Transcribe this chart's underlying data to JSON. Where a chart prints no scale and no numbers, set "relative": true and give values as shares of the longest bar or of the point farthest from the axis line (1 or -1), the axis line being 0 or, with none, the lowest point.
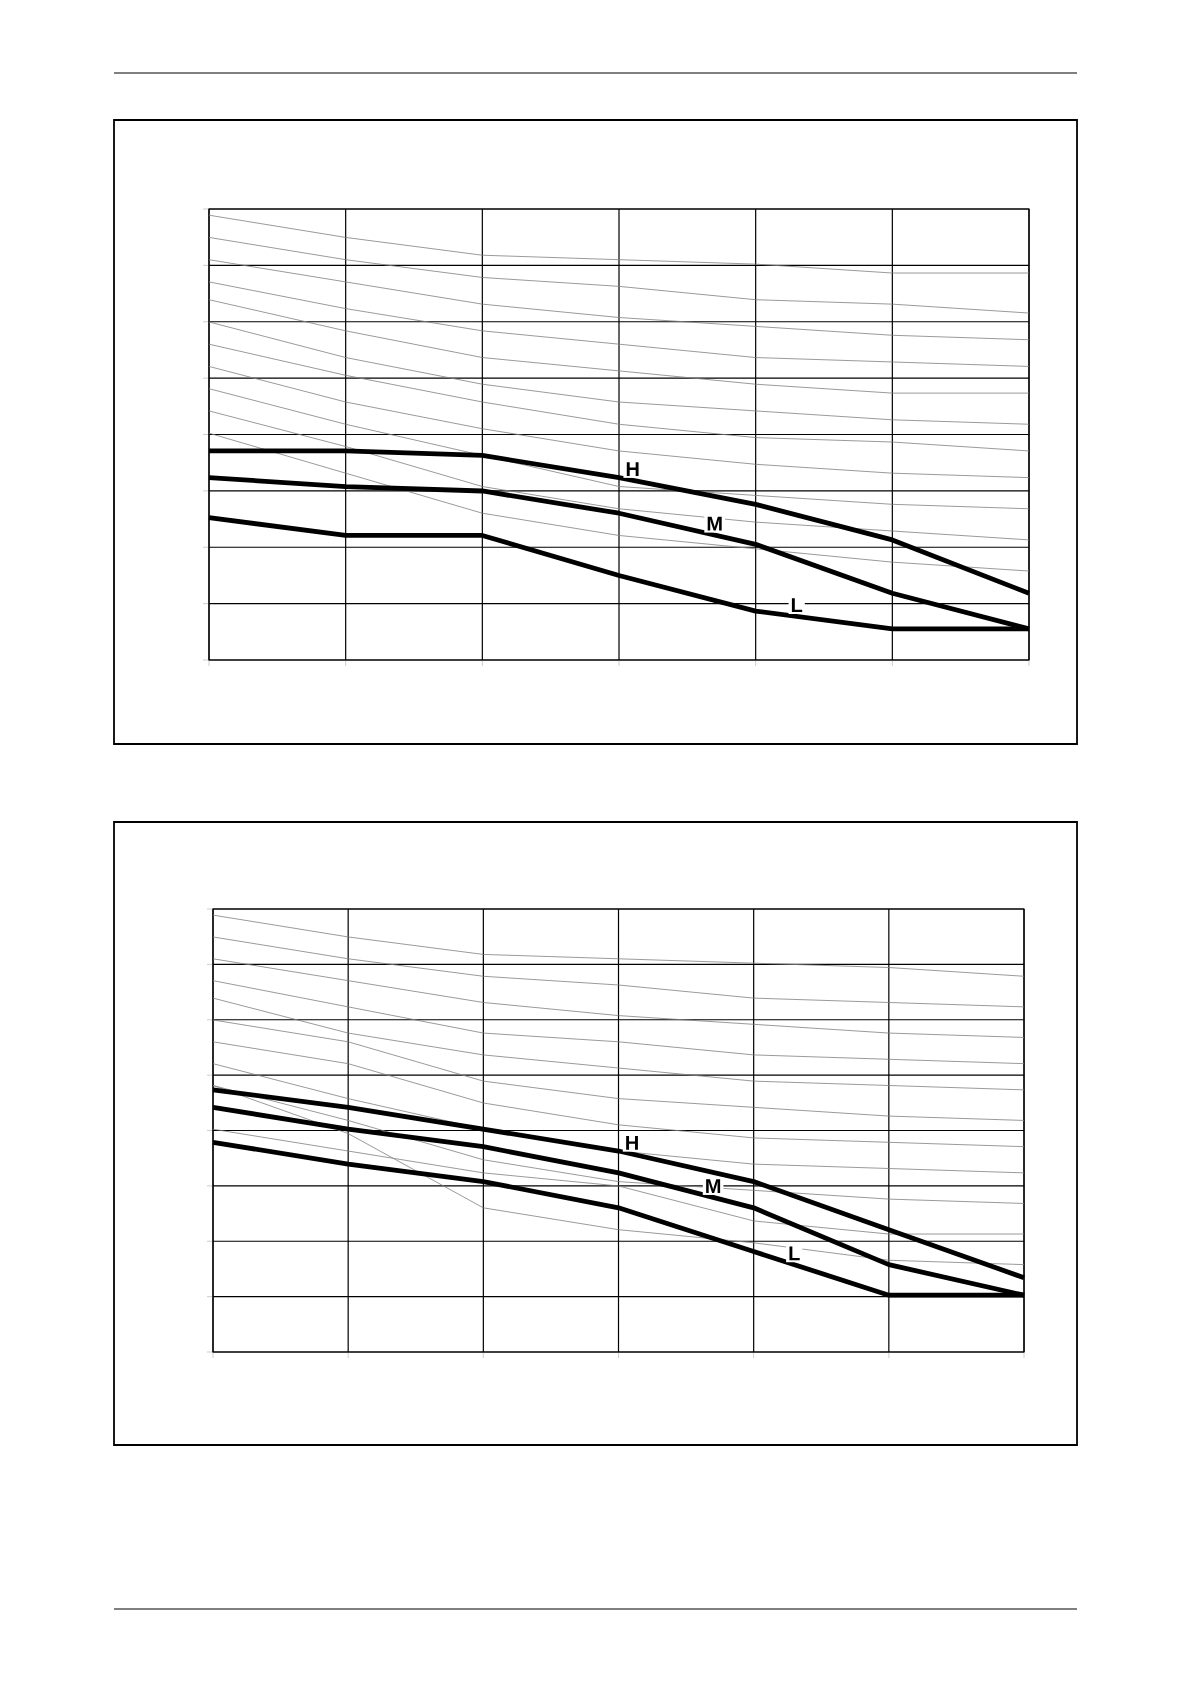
{
  "chart_data": [
    {
      "type": "line",
      "relative": true,
      "grid": true,
      "categories": [
        null,
        null,
        null,
        null,
        null,
        null,
        null
      ],
      "series": [
        {
          "color": "#808080",
          "values": [
            1.0,
            0.95,
            0.91,
            0.9,
            0.89,
            0.87,
            0.87
          ]
        },
        {
          "color": "#808080",
          "values": [
            0.95,
            0.9,
            0.86,
            0.84,
            0.81,
            0.8,
            0.78
          ]
        },
        {
          "color": "#808080",
          "values": [
            0.9,
            0.85,
            0.8,
            0.77,
            0.75,
            0.73,
            0.72
          ]
        },
        {
          "color": "#808080",
          "values": [
            0.85,
            0.79,
            0.74,
            0.71,
            0.68,
            0.67,
            0.66
          ]
        },
        {
          "color": "#808080",
          "values": [
            0.81,
            0.74,
            0.68,
            0.65,
            0.62,
            0.6,
            0.6
          ]
        },
        {
          "color": "#808080",
          "values": [
            0.76,
            0.68,
            0.62,
            0.58,
            0.56,
            0.54,
            0.53
          ]
        },
        {
          "color": "#808080",
          "values": [
            0.71,
            0.64,
            0.58,
            0.53,
            0.5,
            0.49,
            0.47
          ]
        },
        {
          "color": "#808080",
          "values": [
            0.66,
            0.58,
            0.52,
            0.47,
            0.44,
            0.42,
            0.41
          ]
        },
        {
          "color": "#808080",
          "values": [
            0.61,
            0.53,
            0.46,
            0.39,
            0.37,
            0.35,
            0.34
          ]
        },
        {
          "color": "#808080",
          "values": [
            0.56,
            0.48,
            0.39,
            0.34,
            0.31,
            0.29,
            0.27
          ]
        },
        {
          "color": "#808080",
          "values": [
            0.51,
            0.42,
            0.33,
            0.28,
            0.25,
            0.22,
            0.2
          ]
        },
        {
          "name": "H",
          "color": "#000000",
          "values": [
            0.47,
            0.47,
            0.46,
            0.41,
            0.35,
            0.27,
            0.15
          ]
        },
        {
          "name": "M",
          "color": "#000000",
          "values": [
            0.41,
            0.39,
            0.38,
            0.33,
            0.26,
            0.15,
            0.07
          ]
        },
        {
          "name": "L",
          "color": "#000000",
          "values": [
            0.32,
            0.28,
            0.28,
            0.19,
            0.11,
            0.07,
            0.07
          ]
        }
      ]
    },
    {
      "type": "line",
      "relative": true,
      "grid": true,
      "categories": [
        null,
        null,
        null,
        null,
        null,
        null,
        null
      ],
      "series": [
        {
          "color": "#808080",
          "values": [
            1.0,
            0.95,
            0.91,
            0.9,
            0.89,
            0.88,
            0.86
          ]
        },
        {
          "color": "#808080",
          "values": [
            0.95,
            0.9,
            0.86,
            0.84,
            0.81,
            0.8,
            0.79
          ]
        },
        {
          "color": "#808080",
          "values": [
            0.9,
            0.85,
            0.8,
            0.77,
            0.75,
            0.73,
            0.72
          ]
        },
        {
          "color": "#808080",
          "values": [
            0.85,
            0.79,
            0.73,
            0.71,
            0.68,
            0.67,
            0.66
          ]
        },
        {
          "color": "#808080",
          "values": [
            0.81,
            0.73,
            0.68,
            0.65,
            0.62,
            0.61,
            0.6
          ]
        },
        {
          "color": "#808080",
          "values": [
            0.76,
            0.71,
            0.62,
            0.58,
            0.56,
            0.54,
            0.53
          ]
        },
        {
          "color": "#808080",
          "values": [
            0.71,
            0.66,
            0.57,
            0.52,
            0.49,
            0.48,
            0.47
          ]
        },
        {
          "color": "#808080",
          "values": [
            0.66,
            0.58,
            0.51,
            0.46,
            0.43,
            0.42,
            0.41
          ]
        },
        {
          "color": "#808080",
          "values": [
            0.61,
            0.53,
            0.44,
            0.39,
            0.37,
            0.35,
            0.34
          ]
        },
        {
          "color": "#808080",
          "values": [
            0.51,
            0.46,
            0.41,
            0.38,
            0.3,
            0.27,
            0.27
          ]
        },
        {
          "color": "#808080",
          "values": [
            0.61,
            0.5,
            0.33,
            0.28,
            0.25,
            0.21,
            0.2
          ]
        },
        {
          "name": "H",
          "color": "#000000",
          "values": [
            0.6,
            0.56,
            0.51,
            0.46,
            0.39,
            0.28,
            0.17
          ]
        },
        {
          "name": "M",
          "color": "#000000",
          "values": [
            0.56,
            0.51,
            0.47,
            0.41,
            0.33,
            0.2,
            0.13
          ]
        },
        {
          "name": "L",
          "color": "#000000",
          "values": [
            0.48,
            0.43,
            0.39,
            0.33,
            0.23,
            0.13,
            0.13
          ]
        }
      ]
    }
  ]
}
